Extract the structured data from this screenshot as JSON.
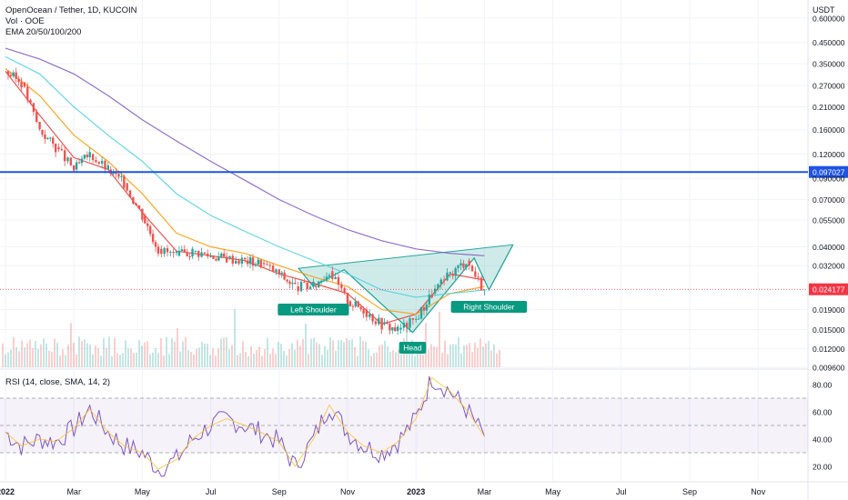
{
  "header": {
    "symbol_line": "OpenOcean / Tether, 1D, KUCOIN",
    "volume_line": "Vol · OOE",
    "ema_line": "EMA 20/50/100/200",
    "rsi_line": "RSI (14, close, SMA, 14, 2)"
  },
  "price_axis": {
    "unit": "USDT",
    "ticks": [
      "0.600000",
      "0.450000",
      "0.350000",
      "0.270000",
      "0.210000",
      "0.160000",
      "0.120000",
      "0.090000",
      "0.070000",
      "0.055000",
      "0.040000",
      "0.032000",
      "0.019000",
      "0.015000",
      "0.012000",
      "0.009600"
    ],
    "scale": "log"
  },
  "price_labels": {
    "resistance": "0.097027",
    "current": "0.024177"
  },
  "rsi_axis": {
    "ticks": [
      "80.00",
      "60.00",
      "40.00",
      "20.00"
    ]
  },
  "time_axis": {
    "ticks": [
      "2022",
      "Mar",
      "May",
      "Jul",
      "Sep",
      "Nov",
      "2023",
      "Mar",
      "May",
      "Jul",
      "Sep",
      "Nov"
    ]
  },
  "annotations": {
    "left_shoulder": "Left Shoulder",
    "head": "Head",
    "right_shoulder": "Right Shoulder"
  },
  "colors": {
    "resistance_line": "#1e53e5",
    "current_price": "#f23645",
    "up_candle": "#26a69a",
    "down_candle": "#ef5350",
    "ema20": "#e53935",
    "ema50": "#ff9800",
    "ema100": "#4dd0e1",
    "ema200": "#7e57c2",
    "pattern_fill": "#26a69a",
    "label_bg": "#089981",
    "rsi_line": "#7e57c2",
    "rsi_sma": "#fbc02d",
    "rsi_band": "#7e57c2"
  },
  "chart_data": {
    "type": "line",
    "title": "OpenOcean / Tether, 1D, KUCOIN",
    "x_unit": "month",
    "y_scale": "log",
    "ylim": [
      0.0096,
      0.6
    ],
    "series": [
      {
        "name": "close",
        "x": [
          "2022-01",
          "2022-01-15",
          "2022-02",
          "2022-02-15",
          "2022-03",
          "2022-03-15",
          "2022-04",
          "2022-04-15",
          "2022-05",
          "2022-05-15",
          "2022-06",
          "2022-06-15",
          "2022-07",
          "2022-07-15",
          "2022-08",
          "2022-08-15",
          "2022-09",
          "2022-09-15",
          "2022-10",
          "2022-10-15",
          "2022-11",
          "2022-11-15",
          "2022-12",
          "2022-12-15",
          "2023-01",
          "2023-01-15",
          "2023-02",
          "2023-02-15",
          "2023-03"
        ],
        "values": [
          0.32,
          0.28,
          0.16,
          0.13,
          0.1,
          0.12,
          0.1,
          0.085,
          0.058,
          0.039,
          0.036,
          0.038,
          0.036,
          0.035,
          0.034,
          0.033,
          0.029,
          0.025,
          0.025,
          0.03,
          0.021,
          0.019,
          0.016,
          0.015,
          0.017,
          0.023,
          0.029,
          0.034,
          0.024
        ]
      },
      {
        "name": "EMA 20",
        "x": [
          "2022-01",
          "2022-02",
          "2022-03",
          "2022-04",
          "2022-05",
          "2022-06",
          "2022-07",
          "2022-08",
          "2022-09",
          "2022-10",
          "2022-11",
          "2022-12",
          "2023-01",
          "2023-02",
          "2023-03"
        ],
        "values": [
          0.32,
          0.19,
          0.115,
          0.1,
          0.06,
          0.038,
          0.036,
          0.034,
          0.029,
          0.026,
          0.023,
          0.016,
          0.018,
          0.029,
          0.027
        ]
      },
      {
        "name": "EMA 50",
        "x": [
          "2022-01",
          "2022-02",
          "2022-03",
          "2022-04",
          "2022-05",
          "2022-06",
          "2022-07",
          "2022-08",
          "2022-09",
          "2022-10",
          "2022-11",
          "2022-12",
          "2023-01",
          "2023-02",
          "2023-03"
        ],
        "values": [
          0.33,
          0.24,
          0.15,
          0.11,
          0.075,
          0.047,
          0.04,
          0.037,
          0.032,
          0.028,
          0.025,
          0.019,
          0.018,
          0.023,
          0.025
        ]
      },
      {
        "name": "EMA 100",
        "x": [
          "2022-01",
          "2022-02",
          "2022-03",
          "2022-04",
          "2022-05",
          "2022-06",
          "2022-07",
          "2022-08",
          "2022-09",
          "2022-10",
          "2022-11",
          "2022-12",
          "2023-01",
          "2023-02",
          "2023-03"
        ],
        "values": [
          0.38,
          0.31,
          0.21,
          0.15,
          0.11,
          0.075,
          0.058,
          0.048,
          0.04,
          0.034,
          0.029,
          0.024,
          0.022,
          0.023,
          0.024
        ]
      },
      {
        "name": "EMA 200",
        "x": [
          "2022-01",
          "2022-02",
          "2022-03",
          "2022-04",
          "2022-05",
          "2022-06",
          "2022-07",
          "2022-08",
          "2022-09",
          "2022-10",
          "2022-11",
          "2022-12",
          "2023-01",
          "2023-02",
          "2023-03"
        ],
        "values": [
          0.42,
          0.37,
          0.31,
          0.24,
          0.18,
          0.14,
          0.11,
          0.088,
          0.07,
          0.058,
          0.049,
          0.043,
          0.039,
          0.037,
          0.036
        ]
      }
    ],
    "levels": [
      {
        "name": "resistance",
        "value": 0.097027
      },
      {
        "name": "current",
        "value": 0.024177
      }
    ],
    "rsi": {
      "ylim": [
        10,
        90
      ],
      "bands": [
        30,
        70
      ],
      "x": [
        "2022-01",
        "2022-01-15",
        "2022-02",
        "2022-02-15",
        "2022-03",
        "2022-03-15",
        "2022-04",
        "2022-04-15",
        "2022-05",
        "2022-05-15",
        "2022-06",
        "2022-06-15",
        "2022-07",
        "2022-07-15",
        "2022-08",
        "2022-08-15",
        "2022-09",
        "2022-09-15",
        "2022-10",
        "2022-10-15",
        "2022-11",
        "2022-11-15",
        "2022-12",
        "2022-12-15",
        "2023-01",
        "2023-01-15",
        "2023-02",
        "2023-02-15",
        "2023-03"
      ],
      "values": [
        45,
        35,
        40,
        38,
        48,
        62,
        45,
        35,
        30,
        18,
        25,
        40,
        50,
        55,
        50,
        45,
        38,
        20,
        40,
        65,
        45,
        35,
        30,
        38,
        55,
        85,
        75,
        62,
        42
      ]
    }
  }
}
